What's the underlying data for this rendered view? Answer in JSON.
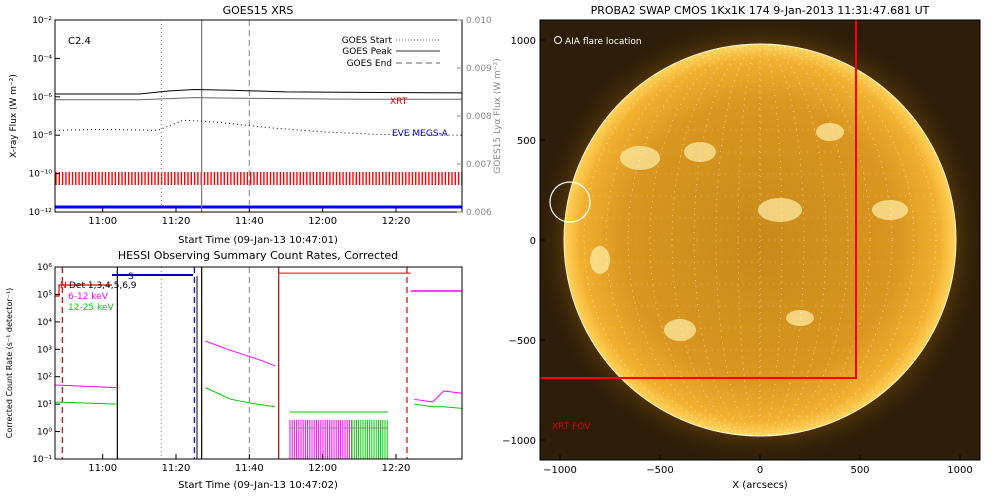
{
  "chart_data": [
    {
      "type": "line",
      "title": "GOES15 XRS",
      "xlabel": "Start Time (09-Jan-13 10:47:01)",
      "ylabel": "X-ray Flux (W m⁻²)",
      "ylabel_right": "GOES15 Lyα Flux (W m⁻²)",
      "xlim": [
        "10:47",
        "12:38"
      ],
      "x_ticks": [
        "11:00",
        "11:20",
        "11:40",
        "12:00",
        "12:20"
      ],
      "y_log": true,
      "ylim": [
        1e-12,
        0.01
      ],
      "y_ticks": [
        "10⁻¹²",
        "10⁻¹⁰",
        "10⁻⁸",
        "10⁻⁶",
        "10⁻⁴",
        "10⁻²"
      ],
      "ylim_right": [
        0.006,
        0.01
      ],
      "y_ticks_right": [
        "0.006",
        "0.007",
        "0.008",
        "0.009",
        "0.010"
      ],
      "annotation_class": "C2.4",
      "legend": [
        {
          "name": "GOES Start",
          "style": "dotted"
        },
        {
          "name": "GOES Peak",
          "style": "solid"
        },
        {
          "name": "GOES End",
          "style": "dashed"
        }
      ],
      "markers": [
        {
          "name": "GOES Start",
          "x": "11:16"
        },
        {
          "name": "GOES Peak",
          "x": "11:27"
        },
        {
          "name": "GOES End",
          "x": "11:40"
        }
      ],
      "series": [
        {
          "name": "",
          "color": "#000000",
          "x": [
            "10:47",
            "11:10",
            "11:18",
            "11:25",
            "11:35",
            "11:50",
            "12:10",
            "12:38"
          ],
          "y": [
            1.4e-06,
            1.4e-06,
            2e-06,
            2.4e-06,
            2.2e-06,
            1.8e-06,
            1.7e-06,
            1.6e-06
          ]
        },
        {
          "name": "",
          "color": "#666666",
          "x": [
            "10:47",
            "11:10",
            "11:18",
            "11:25",
            "11:35",
            "11:50",
            "12:10",
            "12:38"
          ],
          "y": [
            7e-07,
            7e-07,
            8e-07,
            9e-07,
            8.5e-07,
            8e-07,
            7.5e-07,
            7.5e-07
          ]
        },
        {
          "name": "",
          "color": "#000000",
          "style": "dotted",
          "x": [
            "10:47",
            "11:00",
            "11:15",
            "11:22",
            "11:30",
            "11:45",
            "12:00",
            "12:15",
            "12:38"
          ],
          "y": [
            1.8e-08,
            2e-08,
            1.8e-08,
            6e-08,
            5e-08,
            2.5e-08,
            1.5e-08,
            1.1e-08,
            1e-08
          ]
        }
      ],
      "labels": [
        "XRT",
        "EVE MEGS-A"
      ],
      "coverage_bars": [
        {
          "name": "XRT",
          "color": "#ff0000"
        },
        {
          "name": "EVE MEGS-A",
          "color": "#0000ff"
        }
      ]
    },
    {
      "type": "line",
      "title": "HESSI Observing Summary Count Rates, Corrected",
      "xlabel": "Start Time (09-Jan-13 10:47:02)",
      "ylabel": "Corrected Count Rate (s⁻¹ detector⁻¹)",
      "xlim": [
        "10:47",
        "12:38"
      ],
      "x_ticks": [
        "11:00",
        "11:20",
        "11:40",
        "12:00",
        "12:20"
      ],
      "y_log": true,
      "ylim": [
        0.1,
        1000000.0
      ],
      "y_ticks": [
        "10⁻¹",
        "10⁰",
        "10¹",
        "10²",
        "10³",
        "10⁴",
        "10⁵",
        "10⁶"
      ],
      "legend": [
        {
          "name": "N",
          "color": "#dd0000"
        },
        {
          "name": "Det 1,3,4,5,6,9",
          "color": "#000000"
        },
        {
          "name": "6-12 keV",
          "color": "#ff00ff"
        },
        {
          "name": "12-25 keV",
          "color": "#00cc00"
        }
      ],
      "annotations": [
        "S"
      ],
      "markers": [
        {
          "style": "dashed",
          "color": "#dd0000",
          "x": "10:49"
        },
        {
          "style": "solid",
          "color": "#000000",
          "x": "11:04"
        },
        {
          "style": "dotted",
          "color": "#999999",
          "x": "11:16"
        },
        {
          "style": "dashed",
          "color": "#0000ff",
          "x": "11:25"
        },
        {
          "style": "solid",
          "color": "#000000",
          "x": "11:27"
        },
        {
          "style": "dashed",
          "color": "#999999",
          "x": "11:40"
        },
        {
          "style": "solid",
          "color": "#dd0000",
          "x": "11:48"
        },
        {
          "style": "dashed",
          "color": "#dd0000",
          "x": "12:23"
        }
      ],
      "series": [
        {
          "name": "6-12 keV",
          "color": "#ff00ff",
          "x": [
            "10:47",
            "11:04",
            "11:04",
            "11:27",
            "11:28",
            "11:35",
            "11:42",
            "11:47",
            "11:48",
            "11:48",
            "12:24",
            "12:25",
            "12:30",
            "12:33",
            "12:38"
          ],
          "y": [
            50,
            40,
            null,
            null,
            2000,
            900,
            450,
            250,
            null,
            null,
            null,
            15,
            12,
            30,
            25
          ]
        },
        {
          "name": "12-25 keV",
          "color": "#00cc00",
          "x": [
            "10:47",
            "11:04",
            "11:04",
            "11:27",
            "11:28",
            "11:35",
            "11:42",
            "11:47",
            "11:48",
            "11:48",
            "12:24",
            "12:25",
            "12:30",
            "12:33",
            "12:38"
          ],
          "y": [
            12,
            10,
            null,
            null,
            40,
            15,
            10,
            8,
            null,
            null,
            null,
            10,
            8,
            8,
            7
          ]
        },
        {
          "name": "attenuator",
          "color": "#dd0000",
          "x": [
            "11:48",
            "12:24",
            "12:38"
          ],
          "y": [
            600000.0,
            600000.0,
            null
          ]
        }
      ]
    }
  ],
  "image_panel": {
    "title": "PROBA2 SWAP CMOS 1Kx1K 174  9-Jan-2013 11:31:47.681 UT",
    "legend_label": "AIA flare location",
    "fov_label": "XRT FOV",
    "xlabel": "X (arcsecs)",
    "x_ticks": [
      "−1000",
      "−500",
      "0",
      "500",
      "1000"
    ],
    "y_ticks": [
      "1000",
      "500",
      "0",
      "−500",
      "−1000"
    ],
    "xlim": [
      -1100,
      1100
    ],
    "ylim": [
      -1100,
      1100
    ],
    "fov_box": {
      "x": [
        -1100,
        480
      ],
      "y": [
        -690,
        1100
      ]
    },
    "flare_location": {
      "x": -950,
      "y": 190
    },
    "colors": {
      "sun": "#f0a018",
      "limb": "#ffd060",
      "background": "#2a1a08",
      "fov": "#ff0000"
    }
  }
}
